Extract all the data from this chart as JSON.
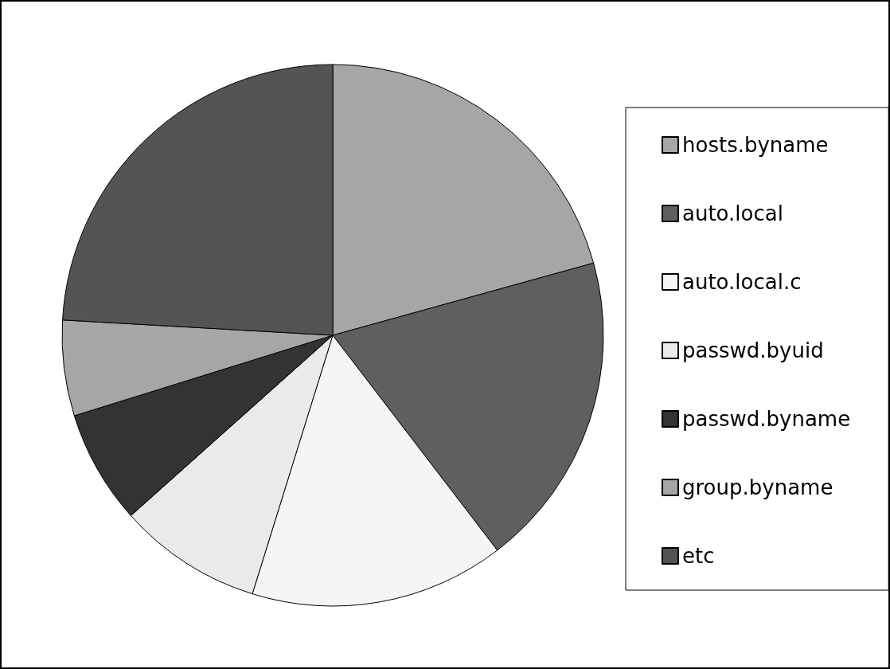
{
  "chart_data": {
    "type": "pie",
    "categories": [
      "hosts.byname",
      "auto.local",
      "auto.local.c",
      "passwd.byuid",
      "passwd.byname",
      "group.byname",
      "etc"
    ],
    "values": [
      20.7,
      18.9,
      15.2,
      8.6,
      6.8,
      5.7,
      24.1
    ],
    "colors": [
      "#a6a6a6",
      "#5f5f5f",
      "#f5f5f5",
      "#eaeaea",
      "#333333",
      "#a6a6a6",
      "#545454"
    ],
    "legend": "right"
  }
}
